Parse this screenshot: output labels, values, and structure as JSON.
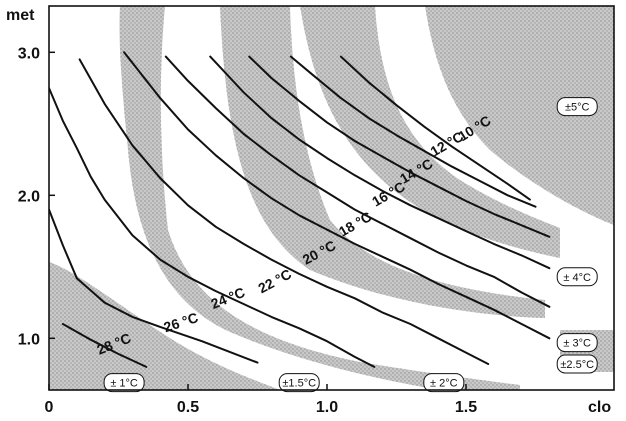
{
  "chart_data": {
    "type": "line",
    "title": "",
    "xlabel": "clo",
    "ylabel": "met",
    "xlim": [
      0,
      2.0
    ],
    "ylim": [
      0.6,
      3.1
    ],
    "x_ticks": [
      {
        "value": 0,
        "label": "0"
      },
      {
        "value": 0.5,
        "label": "0.5"
      },
      {
        "value": 1.0,
        "label": "1.0"
      },
      {
        "value": 1.5,
        "label": "1.5"
      }
    ],
    "y_ticks": [
      {
        "value": 1.0,
        "label": "1.0"
      },
      {
        "value": 2.0,
        "label": "2.0"
      },
      {
        "value": 3.0,
        "label": "3.0"
      }
    ],
    "series": [
      {
        "name": "28 °C",
        "x": [
          0.05,
          0.15,
          0.25,
          0.35
        ],
        "y": [
          1.1,
          0.99,
          0.89,
          0.8
        ]
      },
      {
        "name": "26 °C",
        "x": [
          0.0,
          0.05,
          0.1,
          0.2,
          0.3,
          0.4,
          0.55,
          0.75
        ],
        "y": [
          1.9,
          1.65,
          1.42,
          1.25,
          1.15,
          1.08,
          0.98,
          0.83
        ]
      },
      {
        "name": "24 °C",
        "x": [
          0.0,
          0.05,
          0.1,
          0.15,
          0.2,
          0.3,
          0.4,
          0.5,
          0.6,
          0.7,
          0.8,
          0.9,
          1.0,
          1.1,
          1.17
        ],
        "y": [
          2.75,
          2.52,
          2.33,
          2.13,
          1.97,
          1.72,
          1.55,
          1.43,
          1.33,
          1.24,
          1.15,
          1.07,
          0.98,
          0.87,
          0.8
        ]
      },
      {
        "name": "22 °C",
        "x": [
          0.11,
          0.2,
          0.3,
          0.4,
          0.5,
          0.6,
          0.7,
          0.8,
          0.9,
          1.0,
          1.1,
          1.2,
          1.3,
          1.4,
          1.5,
          1.58
        ],
        "y": [
          2.95,
          2.64,
          2.35,
          2.12,
          1.93,
          1.78,
          1.66,
          1.55,
          1.45,
          1.36,
          1.28,
          1.18,
          1.1,
          1.0,
          0.9,
          0.82
        ]
      },
      {
        "name": "20 °C",
        "x": [
          0.27,
          0.4,
          0.5,
          0.6,
          0.7,
          0.8,
          0.9,
          1.0,
          1.1,
          1.2,
          1.3,
          1.4,
          1.5,
          1.6,
          1.7,
          1.8
        ],
        "y": [
          3.0,
          2.68,
          2.46,
          2.28,
          2.12,
          1.98,
          1.86,
          1.76,
          1.66,
          1.57,
          1.48,
          1.38,
          1.29,
          1.2,
          1.1,
          1.0
        ]
      },
      {
        "name": "18 °C",
        "x": [
          0.42,
          0.5,
          0.6,
          0.7,
          0.8,
          0.9,
          1.0,
          1.1,
          1.2,
          1.3,
          1.4,
          1.5,
          1.6,
          1.7,
          1.8
        ],
        "y": [
          2.97,
          2.8,
          2.61,
          2.43,
          2.28,
          2.14,
          2.02,
          1.9,
          1.8,
          1.7,
          1.6,
          1.51,
          1.43,
          1.32,
          1.22
        ]
      },
      {
        "name": "16 °C",
        "x": [
          0.58,
          0.7,
          0.8,
          0.9,
          1.0,
          1.1,
          1.2,
          1.3,
          1.4,
          1.5,
          1.6,
          1.7,
          1.8
        ],
        "y": [
          2.97,
          2.72,
          2.54,
          2.39,
          2.26,
          2.14,
          2.03,
          1.93,
          1.84,
          1.75,
          1.66,
          1.58,
          1.49
        ]
      },
      {
        "name": "14 °C",
        "x": [
          0.72,
          0.8,
          0.9,
          1.0,
          1.1,
          1.2,
          1.3,
          1.4,
          1.5,
          1.6,
          1.7,
          1.8
        ],
        "y": [
          2.97,
          2.82,
          2.66,
          2.51,
          2.38,
          2.27,
          2.16,
          2.06,
          1.96,
          1.87,
          1.79,
          1.71
        ]
      },
      {
        "name": "12 °C",
        "x": [
          0.87,
          0.95,
          1.05,
          1.15,
          1.25,
          1.35,
          1.45,
          1.55,
          1.65,
          1.75
        ],
        "y": [
          2.97,
          2.84,
          2.68,
          2.54,
          2.42,
          2.31,
          2.2,
          2.1,
          2.0,
          1.92
        ]
      },
      {
        "name": "10 °C",
        "x": [
          1.05,
          1.15,
          1.25,
          1.35,
          1.45,
          1.55,
          1.65,
          1.73
        ],
        "y": [
          2.97,
          2.79,
          2.63,
          2.48,
          2.34,
          2.21,
          2.08,
          1.97
        ]
      }
    ],
    "curve_labels": [
      {
        "text": "28 °C",
        "x": 0.24,
        "y": 0.93,
        "angle": -22
      },
      {
        "text": "26 °C",
        "x": 0.48,
        "y": 1.08,
        "angle": -18
      },
      {
        "text": "24 °C",
        "x": 0.65,
        "y": 1.25,
        "angle": -22
      },
      {
        "text": "22 °C",
        "x": 0.82,
        "y": 1.37,
        "angle": -28
      },
      {
        "text": "20 °C",
        "x": 0.98,
        "y": 1.57,
        "angle": -28
      },
      {
        "text": "18 °C",
        "x": 1.11,
        "y": 1.77,
        "angle": -30
      },
      {
        "text": "16 °C",
        "x": 1.23,
        "y": 1.98,
        "angle": -30
      },
      {
        "text": "14 °C",
        "x": 1.33,
        "y": 2.14,
        "angle": -30
      },
      {
        "text": "12 °C",
        "x": 1.44,
        "y": 2.33,
        "angle": -30
      },
      {
        "text": "10 °C",
        "x": 1.54,
        "y": 2.44,
        "angle": -32
      }
    ],
    "tolerance_labels": [
      {
        "text": "± 1°C",
        "x": 0.27,
        "y": 0.69
      },
      {
        "text": "±1.5°C",
        "x": 0.9,
        "y": 0.69
      },
      {
        "text": "± 2°C",
        "x": 1.42,
        "y": 0.69
      },
      {
        "text": "±2.5°C",
        "x": 1.9,
        "y": 0.82
      },
      {
        "text": "± 3°C",
        "x": 1.9,
        "y": 0.97
      },
      {
        "text": "± 4°C",
        "x": 1.9,
        "y": 1.43
      },
      {
        "text": "±5°C",
        "x": 1.9,
        "y": 2.62
      }
    ],
    "grid": false,
    "shaded_bands": "stippled gray bands between curves mark the permissible temperature tolerance zones"
  }
}
